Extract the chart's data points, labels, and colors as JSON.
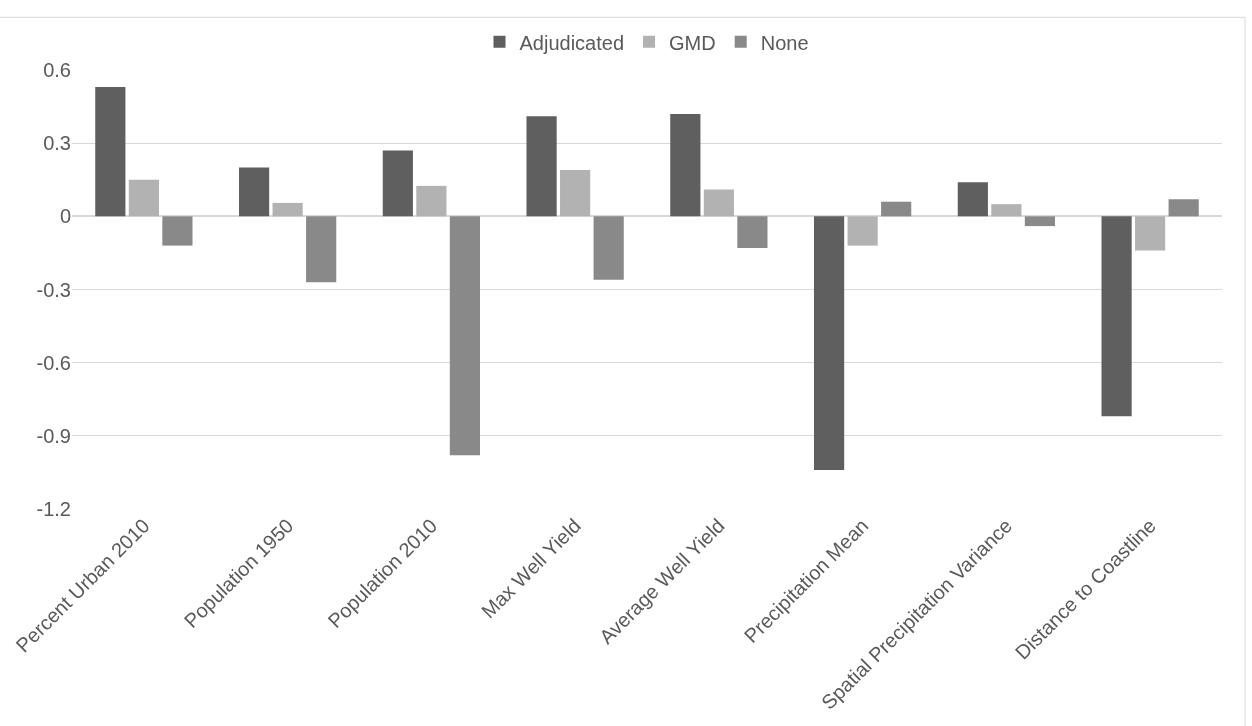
{
  "chart_data": {
    "type": "bar",
    "categories": [
      "Percent Urban 2010",
      "Population 1950",
      "Population 2010",
      "Max Well Yield",
      "Average Well Yield",
      "Precipitation Mean",
      "Spatial Precipitation Variance",
      "Distance to Coastline"
    ],
    "series": [
      {
        "name": "Adjudicated",
        "color": "#5f5f5f",
        "values": [
          0.53,
          0.2,
          0.27,
          0.41,
          0.42,
          -1.04,
          0.14,
          -0.82
        ]
      },
      {
        "name": "GMD",
        "color": "#b2b2b2",
        "values": [
          0.15,
          0.055,
          0.125,
          0.19,
          0.11,
          -0.12,
          0.05,
          -0.14
        ]
      },
      {
        "name": "None",
        "color": "#898989",
        "values": [
          -0.12,
          -0.27,
          -0.98,
          -0.26,
          -0.13,
          0.06,
          -0.04,
          0.07
        ]
      }
    ],
    "ylim": [
      -1.2,
      0.6
    ],
    "yticks": [
      0.6,
      0.3,
      0,
      -0.3,
      -0.6,
      -0.9,
      -1.2
    ],
    "grid": "y",
    "legend": "top"
  }
}
